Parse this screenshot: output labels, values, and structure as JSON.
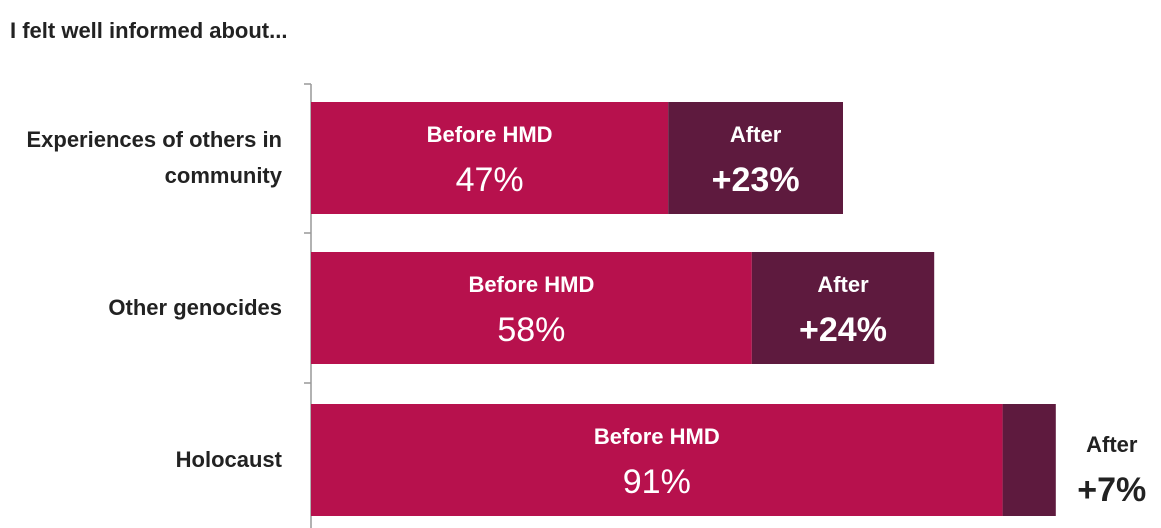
{
  "chart_data": {
    "type": "bar",
    "orientation": "horizontal",
    "stacked": true,
    "title": "I felt well informed about...",
    "categories": [
      "Experiences of others in community",
      "Other genocides",
      "Holocaust"
    ],
    "xlim": [
      0,
      100
    ],
    "series": [
      {
        "name": "Before HMD",
        "color": "#b7114d",
        "values": [
          47,
          58,
          91
        ],
        "value_labels": [
          "47%",
          "58%",
          "91%"
        ]
      },
      {
        "name": "After",
        "color": "#5e1a3e",
        "values": [
          23,
          24,
          7
        ],
        "value_labels": [
          "+23%",
          "+24%",
          "+7%"
        ]
      }
    ]
  }
}
